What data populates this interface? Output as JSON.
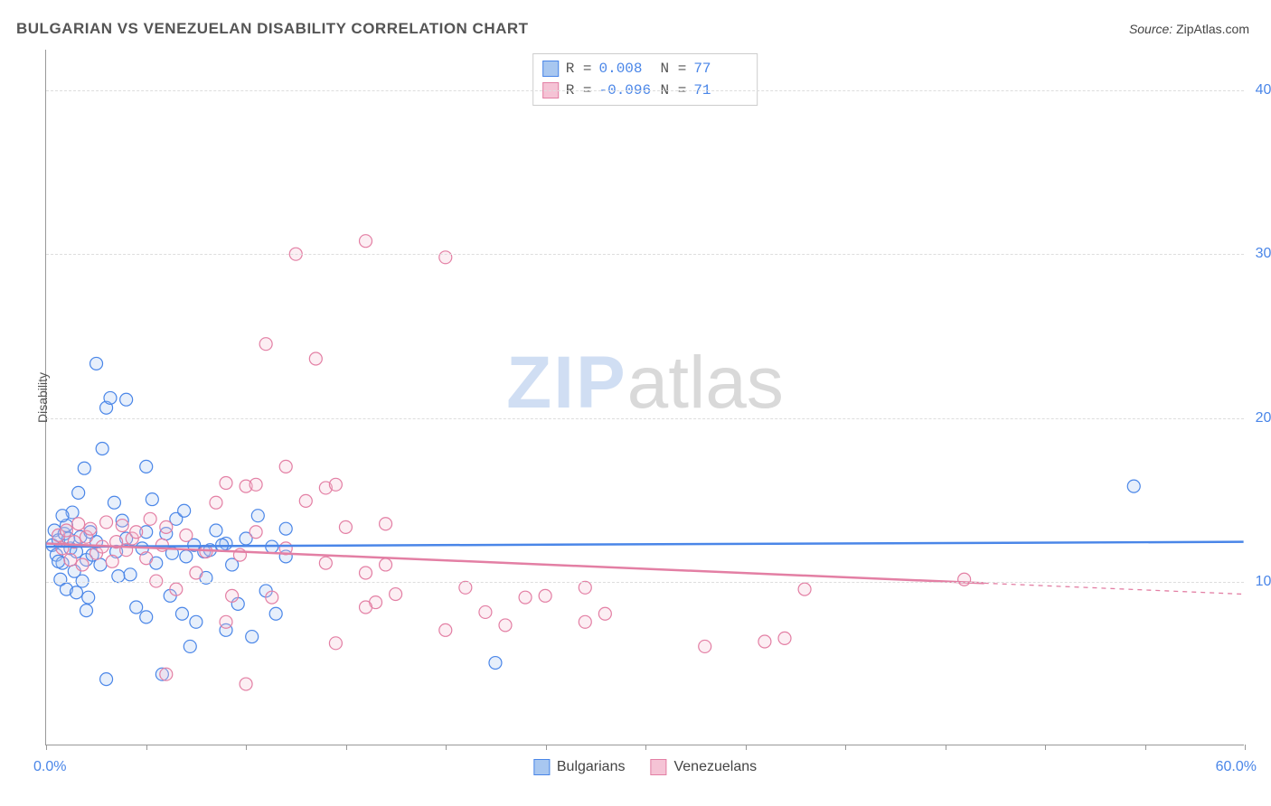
{
  "title": "BULGARIAN VS VENEZUELAN DISABILITY CORRELATION CHART",
  "source_label": "Source:",
  "source_value": "ZipAtlas.com",
  "y_axis_label": "Disability",
  "watermark": {
    "part1": "ZIP",
    "part2": "atlas"
  },
  "chart": {
    "type": "scatter-with-trend",
    "xlim": [
      0,
      60
    ],
    "ylim": [
      0,
      42.5
    ],
    "x_min_label": "0.0%",
    "x_max_label": "60.0%",
    "y_ticks": [
      {
        "value": 10,
        "label": "10.0%"
      },
      {
        "value": 20,
        "label": "20.0%"
      },
      {
        "value": 30,
        "label": "30.0%"
      },
      {
        "value": 40,
        "label": "40.0%"
      }
    ],
    "x_tick_step": 5,
    "background_color": "#ffffff",
    "grid_color": "#dddddd",
    "axis_color": "#999999",
    "tick_label_color": "#4a86e8",
    "marker_radius": 7,
    "marker_stroke_width": 1.2,
    "marker_fill_opacity": 0.28,
    "trend_line_width": 2.5,
    "series": [
      {
        "name": "Bulgarians",
        "color_stroke": "#4a86e8",
        "color_fill": "#a8c7f0",
        "R": "0.008",
        "N": "77",
        "trend": {
          "y_at_xmin": 12.1,
          "y_at_xmax": 12.4,
          "solid_until_x": 60
        },
        "points": [
          [
            0.3,
            12.2
          ],
          [
            0.4,
            13.1
          ],
          [
            0.5,
            11.6
          ],
          [
            0.6,
            12.5
          ],
          [
            0.7,
            10.1
          ],
          [
            0.8,
            11.1
          ],
          [
            0.9,
            12.9
          ],
          [
            1.0,
            13.4
          ],
          [
            1.0,
            9.5
          ],
          [
            1.2,
            12.0
          ],
          [
            1.3,
            14.2
          ],
          [
            1.4,
            10.6
          ],
          [
            1.5,
            11.8
          ],
          [
            1.6,
            15.4
          ],
          [
            1.7,
            12.7
          ],
          [
            1.8,
            10.0
          ],
          [
            1.9,
            16.9
          ],
          [
            2.0,
            11.3
          ],
          [
            2.1,
            9.0
          ],
          [
            2.2,
            13.0
          ],
          [
            2.5,
            23.3
          ],
          [
            2.5,
            12.4
          ],
          [
            2.7,
            11.0
          ],
          [
            2.8,
            18.1
          ],
          [
            3.0,
            20.6
          ],
          [
            3.2,
            21.2
          ],
          [
            3.4,
            14.8
          ],
          [
            3.5,
            11.8
          ],
          [
            3.8,
            13.7
          ],
          [
            4.0,
            21.1
          ],
          [
            4.2,
            10.4
          ],
          [
            4.5,
            8.4
          ],
          [
            4.8,
            12.0
          ],
          [
            5.0,
            13.0
          ],
          [
            5.0,
            7.8
          ],
          [
            5.3,
            15.0
          ],
          [
            5.5,
            11.1
          ],
          [
            5.8,
            4.3
          ],
          [
            6.0,
            12.9
          ],
          [
            6.2,
            9.1
          ],
          [
            6.5,
            13.8
          ],
          [
            6.8,
            8.0
          ],
          [
            6.9,
            14.3
          ],
          [
            7.0,
            11.5
          ],
          [
            7.2,
            6.0
          ],
          [
            7.5,
            7.5
          ],
          [
            7.9,
            11.8
          ],
          [
            8.0,
            10.2
          ],
          [
            8.5,
            13.1
          ],
          [
            9.0,
            12.3
          ],
          [
            9.0,
            7.0
          ],
          [
            9.3,
            11.0
          ],
          [
            9.6,
            8.6
          ],
          [
            10.0,
            12.6
          ],
          [
            10.3,
            6.6
          ],
          [
            10.6,
            14.0
          ],
          [
            11.0,
            9.4
          ],
          [
            11.3,
            12.1
          ],
          [
            11.5,
            8.0
          ],
          [
            12.0,
            13.2
          ],
          [
            12.0,
            11.5
          ],
          [
            7.4,
            12.2
          ],
          [
            8.2,
            11.9
          ],
          [
            3.0,
            4.0
          ],
          [
            2.0,
            8.2
          ],
          [
            5.0,
            17.0
          ],
          [
            0.8,
            14.0
          ],
          [
            0.6,
            11.2
          ],
          [
            1.1,
            12.6
          ],
          [
            4.0,
            12.6
          ],
          [
            1.5,
            9.3
          ],
          [
            2.3,
            11.6
          ],
          [
            3.6,
            10.3
          ],
          [
            6.3,
            11.7
          ],
          [
            8.8,
            12.2
          ],
          [
            22.5,
            5.0
          ],
          [
            54.5,
            15.8
          ]
        ]
      },
      {
        "name": "Venezuelans",
        "color_stroke": "#e37fa4",
        "color_fill": "#f5c3d5",
        "R": "-0.096",
        "N": "71",
        "trend": {
          "y_at_xmin": 12.3,
          "y_at_xmax": 9.2,
          "solid_until_x": 47
        },
        "points": [
          [
            0.6,
            12.8
          ],
          [
            0.8,
            12.0
          ],
          [
            1.0,
            13.1
          ],
          [
            1.2,
            11.3
          ],
          [
            1.4,
            12.4
          ],
          [
            1.6,
            13.5
          ],
          [
            1.8,
            11.0
          ],
          [
            2.0,
            12.7
          ],
          [
            2.2,
            13.2
          ],
          [
            2.5,
            11.7
          ],
          [
            2.8,
            12.1
          ],
          [
            3.0,
            13.6
          ],
          [
            3.3,
            11.2
          ],
          [
            3.5,
            12.4
          ],
          [
            3.8,
            13.4
          ],
          [
            4.0,
            11.9
          ],
          [
            4.3,
            12.6
          ],
          [
            4.5,
            13.0
          ],
          [
            5.0,
            11.4
          ],
          [
            5.2,
            13.8
          ],
          [
            5.5,
            10.0
          ],
          [
            5.8,
            12.2
          ],
          [
            6.0,
            13.3
          ],
          [
            6.5,
            9.5
          ],
          [
            7.0,
            12.8
          ],
          [
            7.5,
            10.5
          ],
          [
            8.0,
            11.8
          ],
          [
            8.5,
            14.8
          ],
          [
            9.0,
            16.0
          ],
          [
            9.3,
            9.1
          ],
          [
            9.7,
            11.6
          ],
          [
            10.0,
            15.8
          ],
          [
            10.0,
            3.7
          ],
          [
            10.5,
            13.0
          ],
          [
            10.5,
            15.9
          ],
          [
            11.0,
            24.5
          ],
          [
            11.3,
            9.0
          ],
          [
            12.0,
            12.0
          ],
          [
            12.5,
            30.0
          ],
          [
            13.0,
            14.9
          ],
          [
            13.5,
            23.6
          ],
          [
            14.0,
            11.1
          ],
          [
            14.0,
            15.7
          ],
          [
            14.5,
            15.9
          ],
          [
            14.5,
            6.2
          ],
          [
            15.0,
            13.3
          ],
          [
            16.0,
            10.5
          ],
          [
            16.0,
            30.8
          ],
          [
            16.5,
            8.7
          ],
          [
            17.0,
            11.0
          ],
          [
            17.5,
            9.2
          ],
          [
            16.0,
            8.4
          ],
          [
            20.0,
            29.8
          ],
          [
            20.0,
            7.0
          ],
          [
            21.0,
            9.6
          ],
          [
            22.0,
            8.1
          ],
          [
            23.0,
            7.3
          ],
          [
            24.0,
            9.0
          ],
          [
            25.0,
            9.1
          ],
          [
            27.0,
            7.5
          ],
          [
            27.0,
            9.6
          ],
          [
            28.0,
            8.0
          ],
          [
            33.0,
            6.0
          ],
          [
            36.0,
            6.3
          ],
          [
            37.0,
            6.5
          ],
          [
            38.0,
            9.5
          ],
          [
            6.0,
            4.3
          ],
          [
            9.0,
            7.5
          ],
          [
            12.0,
            17.0
          ],
          [
            46.0,
            10.1
          ],
          [
            17.0,
            13.5
          ]
        ]
      }
    ]
  },
  "stats_labels": {
    "R": "R =",
    "N": "N ="
  },
  "legend": [
    {
      "label": "Bulgarians",
      "fill": "#a8c7f0",
      "stroke": "#4a86e8"
    },
    {
      "label": "Venezuelans",
      "fill": "#f5c3d5",
      "stroke": "#e37fa4"
    }
  ]
}
